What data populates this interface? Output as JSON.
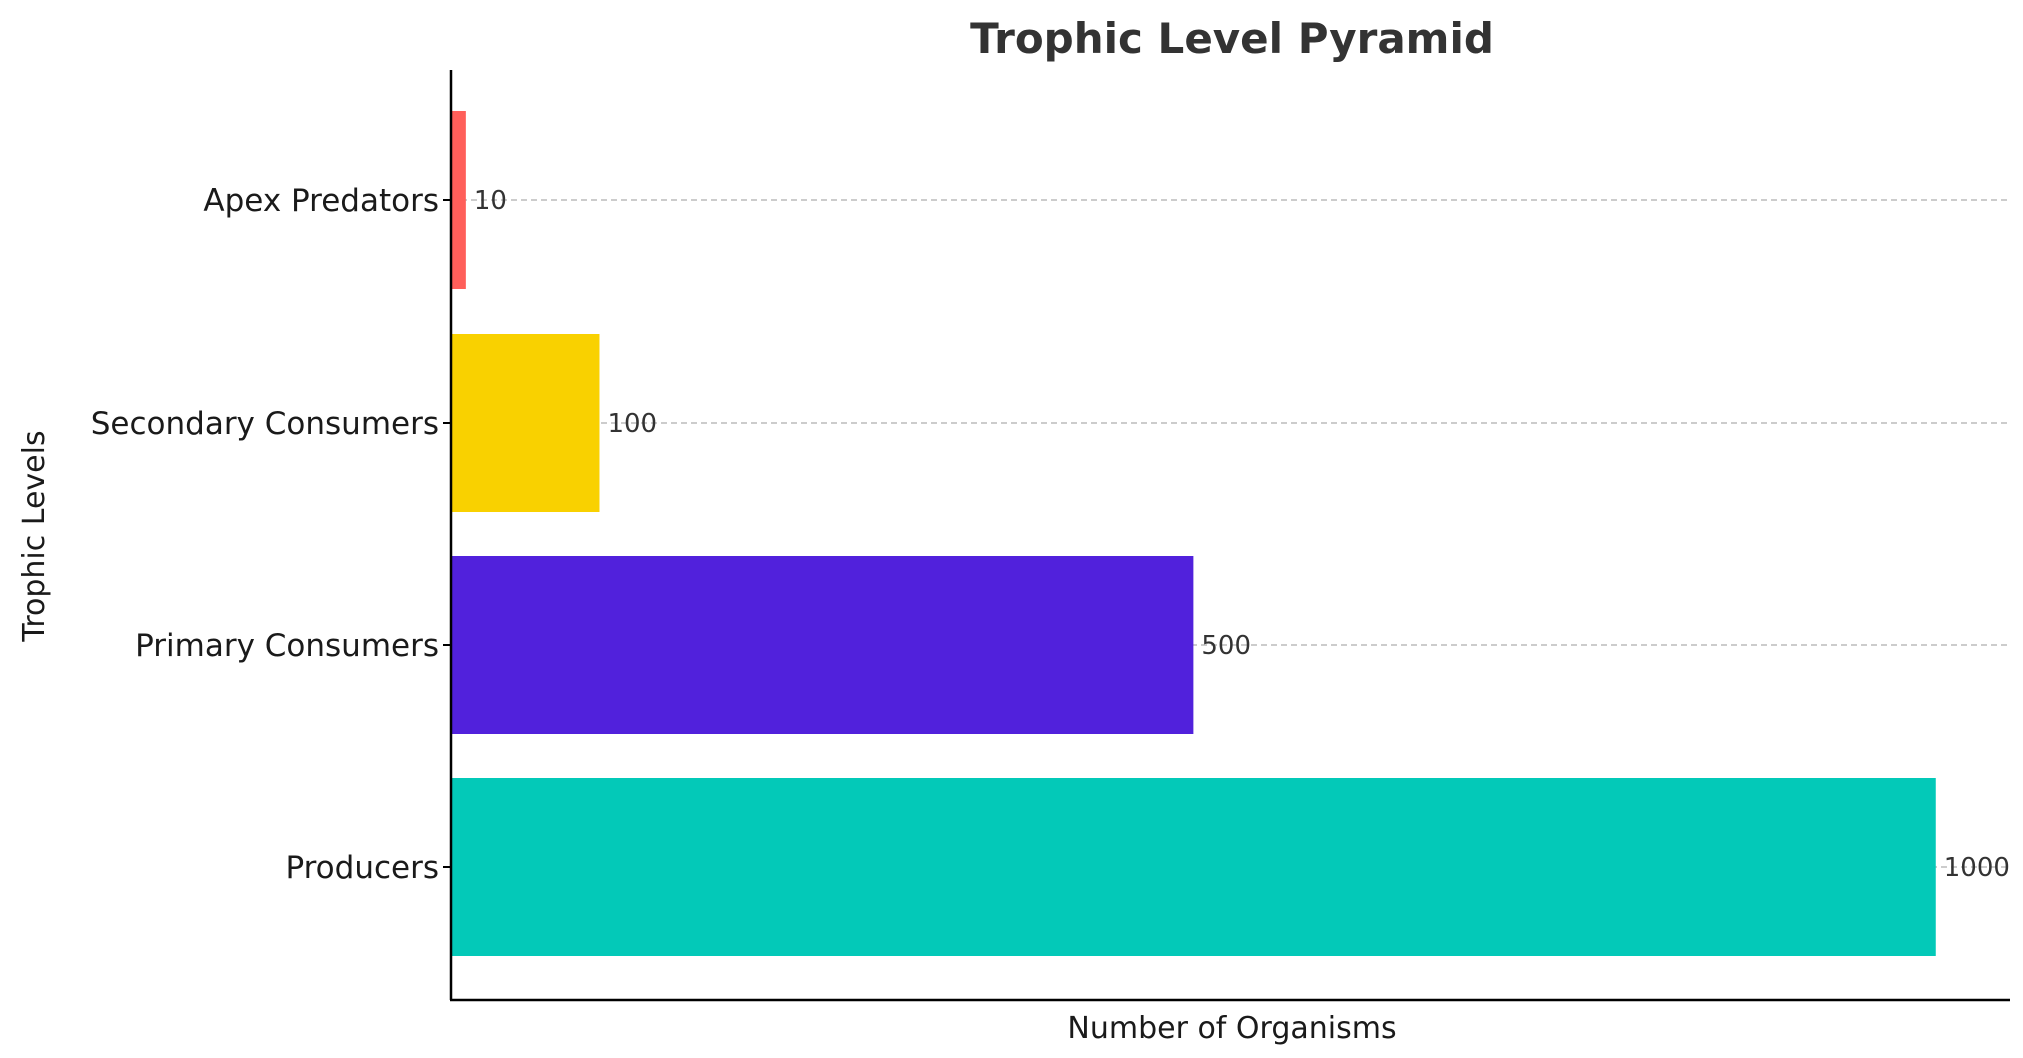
{
  "chart_data": {
    "type": "bar",
    "orientation": "horizontal",
    "title": "Trophic Level Pyramid",
    "xlabel": "Number of Organisms",
    "ylabel": "Trophic Levels",
    "categories": [
      "Producers",
      "Primary Consumers",
      "Secondary Consumers",
      "Apex Predators"
    ],
    "values": [
      1000,
      500,
      100,
      10
    ],
    "data_labels": [
      "1000",
      "500",
      "100",
      "10"
    ],
    "colors": [
      "#03c9b8",
      "#5121dc",
      "#f9d100",
      "#ff5f5a"
    ],
    "xlim": [
      0,
      1050
    ],
    "grid": "y-dashed",
    "x_ticks_shown": false
  }
}
